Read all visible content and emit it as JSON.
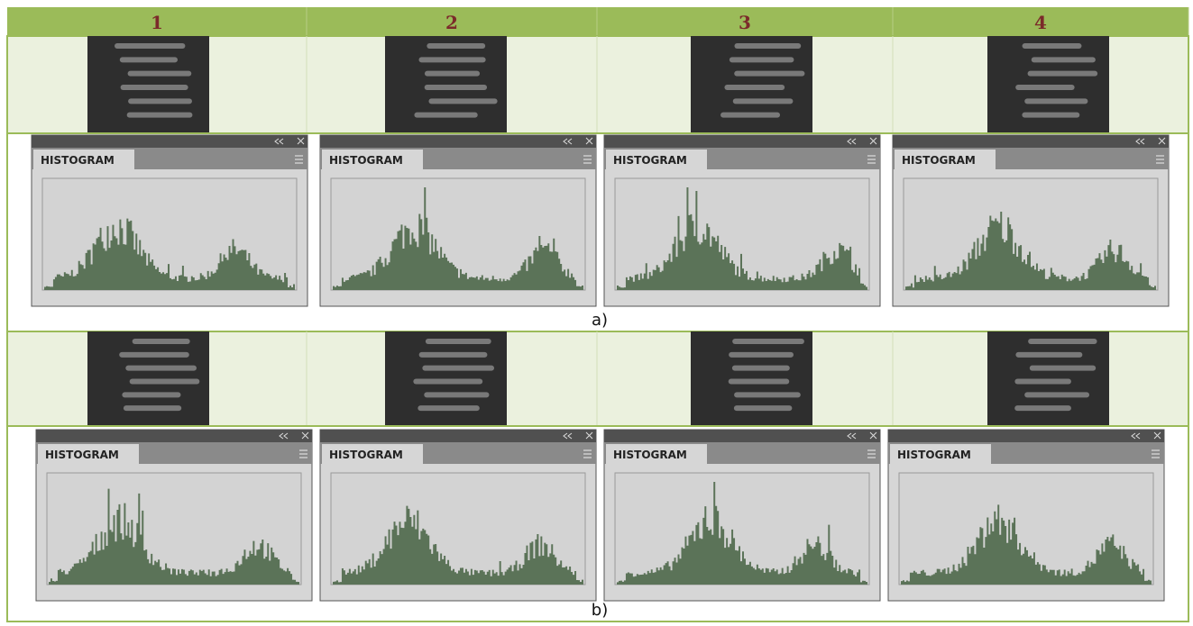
{
  "header": {
    "columns": [
      "1",
      "2",
      "3",
      "4"
    ]
  },
  "rows": [
    {
      "panels": [
        {
          "title": "HISTOGRAM"
        },
        {
          "title": "HISTOGRAM"
        },
        {
          "title": "HISTOGRAM"
        },
        {
          "title": "HISTOGRAM"
        }
      ],
      "caption": "a)"
    },
    {
      "panels": [
        {
          "title": "HISTOGRAM"
        },
        {
          "title": "HISTOGRAM"
        },
        {
          "title": "HISTOGRAM"
        },
        {
          "title": "HISTOGRAM"
        }
      ],
      "caption": "b)"
    }
  ]
}
